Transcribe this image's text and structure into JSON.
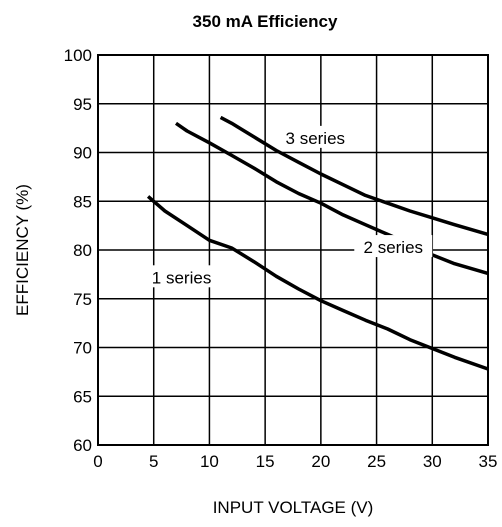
{
  "chart_data": {
    "type": "line",
    "title": "350 mA Efficiency",
    "xlabel": "INPUT VOLTAGE (V)",
    "ylabel": "EFFICIENCY (%)",
    "xlim": [
      0,
      35
    ],
    "ylim": [
      60,
      100
    ],
    "xticks": [
      0,
      5,
      10,
      15,
      20,
      25,
      30,
      35
    ],
    "yticks": [
      60,
      65,
      70,
      75,
      80,
      85,
      90,
      95,
      100
    ],
    "grid": true,
    "legend": "inline labels",
    "line_color": "#000000",
    "series": [
      {
        "name": "1 series",
        "x": [
          4.5,
          6,
          8,
          10,
          12,
          14,
          16,
          18,
          20,
          22,
          24,
          26,
          28,
          30,
          32,
          35
        ],
        "y": [
          85.5,
          84.0,
          82.5,
          81.0,
          80.2,
          78.8,
          77.3,
          76.0,
          74.8,
          73.8,
          72.8,
          71.9,
          70.8,
          69.9,
          69.0,
          67.8
        ]
      },
      {
        "name": "2 series",
        "x": [
          7,
          8,
          10,
          12,
          14,
          16,
          18,
          20,
          22,
          24,
          26,
          28,
          30,
          32,
          35
        ],
        "y": [
          93.0,
          92.2,
          91.0,
          89.7,
          88.4,
          87.0,
          85.8,
          84.8,
          83.6,
          82.6,
          81.6,
          80.6,
          79.5,
          78.6,
          77.6
        ]
      },
      {
        "name": "3 series",
        "x": [
          11,
          12,
          14,
          16,
          18,
          20,
          22,
          24,
          26,
          28,
          30,
          32,
          35
        ],
        "y": [
          93.6,
          93.0,
          91.6,
          90.2,
          89.0,
          87.8,
          86.7,
          85.6,
          84.8,
          84.0,
          83.3,
          82.6,
          81.6
        ]
      }
    ],
    "series_labels": [
      {
        "text": "1 series",
        "x": 7.5,
        "y": 77.2
      },
      {
        "text": "2 series",
        "x": 26.5,
        "y": 80.3
      },
      {
        "text": "3 series",
        "x": 19.5,
        "y": 91.5
      }
    ]
  }
}
